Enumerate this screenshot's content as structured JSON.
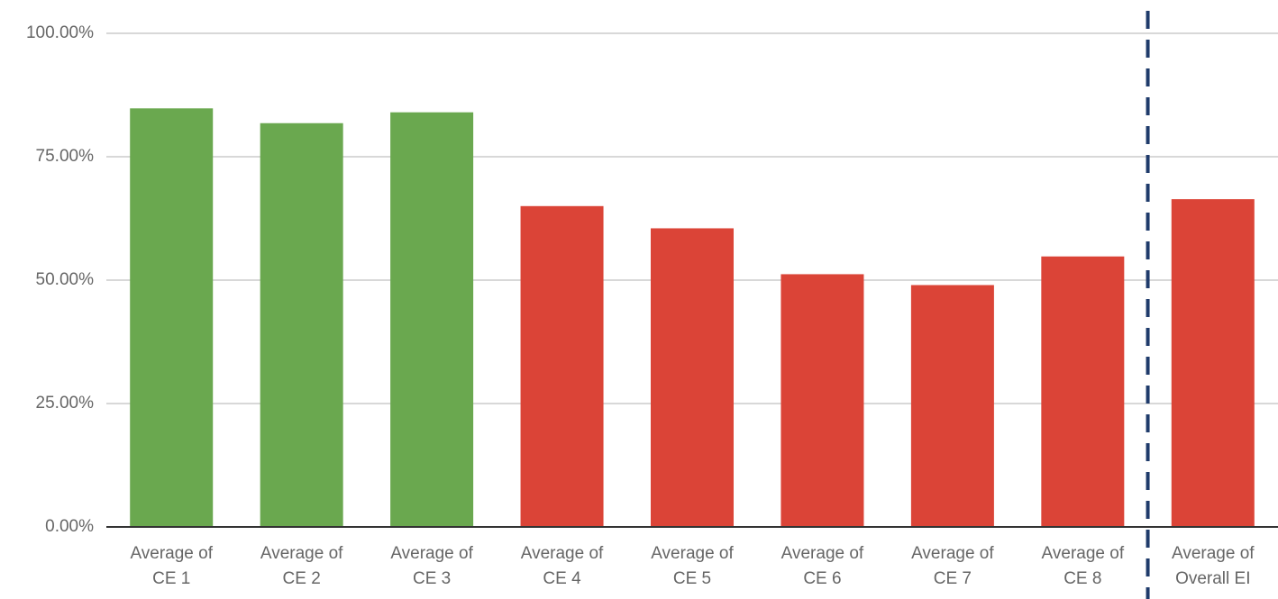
{
  "chart_data": {
    "type": "bar",
    "categories": [
      [
        "Average of",
        "CE 1"
      ],
      [
        "Average of",
        "CE 2"
      ],
      [
        "Average of",
        "CE 3"
      ],
      [
        "Average of",
        "CE 4"
      ],
      [
        "Average of",
        "CE 5"
      ],
      [
        "Average of",
        "CE 6"
      ],
      [
        "Average of",
        "CE 7"
      ],
      [
        "Average of",
        "CE 8"
      ],
      [
        "Average of",
        "Overall EI"
      ]
    ],
    "values": [
      0.848,
      0.818,
      0.84,
      0.65,
      0.605,
      0.512,
      0.49,
      0.548,
      0.664
    ],
    "colors": [
      "#6aa84f",
      "#6aa84f",
      "#6aa84f",
      "#db4437",
      "#db4437",
      "#db4437",
      "#db4437",
      "#db4437",
      "#db4437"
    ],
    "ylim": [
      0,
      1
    ],
    "yticks": [
      0,
      0.25,
      0.5,
      0.75,
      1.0
    ],
    "ytick_labels": [
      "0.00%",
      "25.00%",
      "50.00%",
      "75.00%",
      "100.00%"
    ],
    "grid": true,
    "divider_after_category": 8,
    "divider_color": "#1f3b6b",
    "gridline_color": "#cccccc",
    "axis_color": "#333333"
  }
}
